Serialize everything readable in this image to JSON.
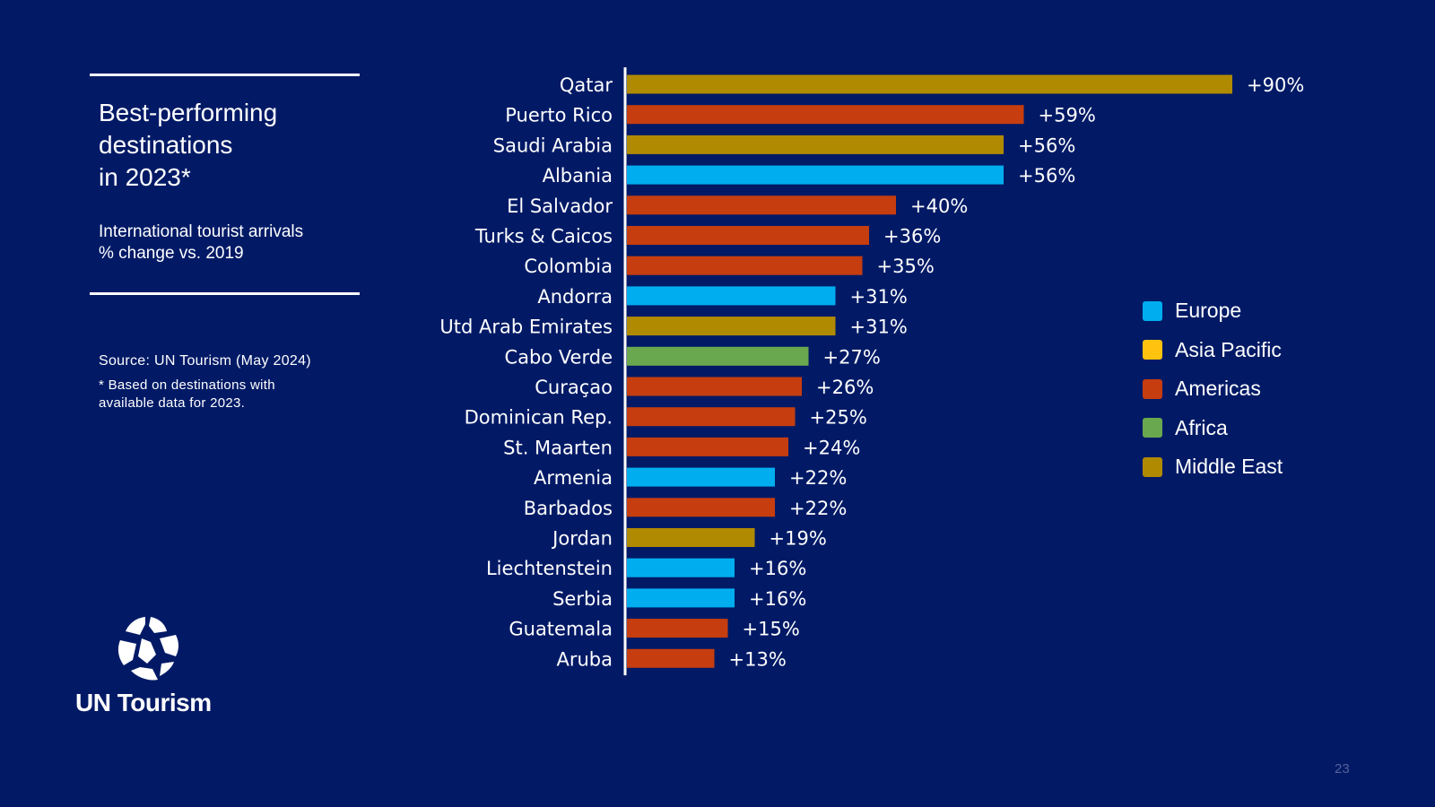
{
  "side_panel": {
    "title_lines": [
      "Best-performing",
      "destinations",
      "in 2023*"
    ],
    "subtitle_lines": [
      "International tourist arrivals",
      "% change vs. 2019"
    ],
    "source": "Source: UN Tourism (May 2024)",
    "note_lines": [
      "* Based on destinations with",
      "available data for 2023."
    ]
  },
  "logo": {
    "text": "UN Tourism",
    "icon": "un-tourism-globe-icon"
  },
  "page_number": "23",
  "colors": {
    "background": "#021a66",
    "Europe": "#00aeef",
    "Asia Pacific": "#ffc20e",
    "Americas": "#c63d0f",
    "Africa": "#6aa84f",
    "Middle East": "#b08a00"
  },
  "chart_data": {
    "type": "bar",
    "orientation": "horizontal",
    "categories": [
      "Qatar",
      "Puerto Rico",
      "Saudi Arabia",
      "Albania",
      "El Salvador",
      "Turks & Caicos",
      "Colombia",
      "Andorra",
      "Utd Arab Emirates",
      "Cabo Verde",
      "Curaçao",
      "Dominican Rep.",
      "St. Maarten",
      "Armenia",
      "Barbados",
      "Jordan",
      "Liechtenstein",
      "Serbia",
      "Guatemala",
      "Aruba"
    ],
    "values": [
      90,
      59,
      56,
      56,
      40,
      36,
      35,
      31,
      31,
      27,
      26,
      25,
      24,
      22,
      22,
      19,
      16,
      16,
      15,
      13
    ],
    "value_labels": [
      "+90%",
      "+59%",
      "+56%",
      "+56%",
      "+40%",
      "+36%",
      "+35%",
      "+31%",
      "+31%",
      "+27%",
      "+26%",
      "+25%",
      "+24%",
      "+22%",
      "+22%",
      "+19%",
      "+16%",
      "+16%",
      "+15%",
      "+13%"
    ],
    "regions": [
      "Middle East",
      "Americas",
      "Middle East",
      "Europe",
      "Americas",
      "Americas",
      "Americas",
      "Europe",
      "Middle East",
      "Africa",
      "Americas",
      "Americas",
      "Americas",
      "Europe",
      "Americas",
      "Middle East",
      "Europe",
      "Europe",
      "Americas",
      "Americas"
    ],
    "xlim": [
      0,
      90
    ],
    "legend": {
      "placement": "right",
      "entries": [
        "Europe",
        "Asia Pacific",
        "Americas",
        "Africa",
        "Middle East"
      ]
    }
  }
}
